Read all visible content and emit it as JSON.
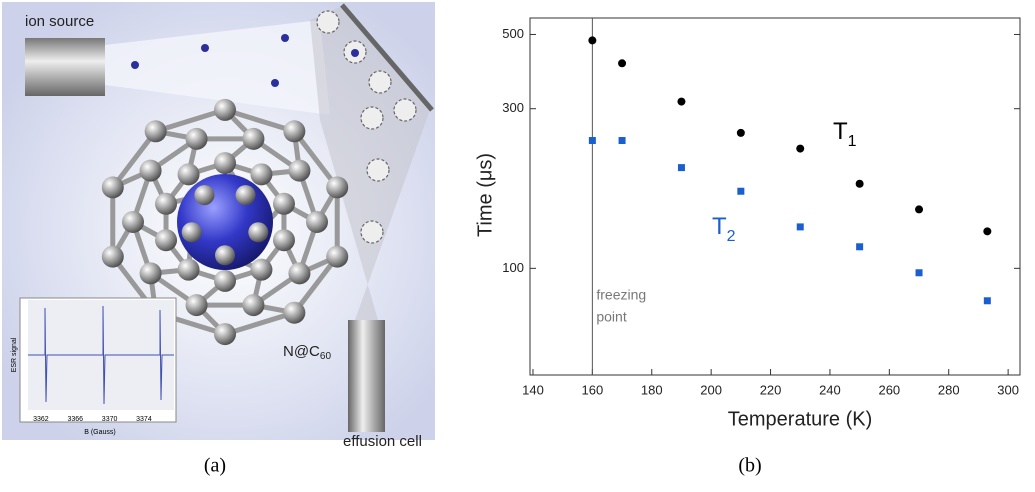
{
  "panel_a": {
    "caption": "(a)",
    "labels": {
      "ion_source": "ion source",
      "molecule": "N@C",
      "molecule_sub": "60",
      "effusion_cell": "effusion cell"
    },
    "inset": {
      "ylabel": "ESR signal",
      "xlabel": "B (Gauss)",
      "xlim": [
        3360.5,
        3377.5
      ],
      "xticks": [
        3362,
        3366,
        3370,
        3374
      ]
    }
  },
  "chart_data": {
    "type": "scatter",
    "caption": "(b)",
    "xlabel": "Temperature (K)",
    "ylabel": "Time (μs)",
    "log_y": true,
    "xlim": [
      139,
      304
    ],
    "ylim": [
      48,
      560
    ],
    "xticks": [
      140,
      160,
      180,
      200,
      220,
      240,
      260,
      280,
      300
    ],
    "yticks": [
      100,
      300,
      500
    ],
    "series": [
      {
        "name": "T",
        "name_sub": "1",
        "color": "#000000",
        "marker": "circle",
        "x": [
          160,
          170,
          190,
          210,
          230,
          250,
          270,
          293
        ],
        "values": [
          480,
          410,
          315,
          254,
          228,
          179,
          150,
          129
        ]
      },
      {
        "name": "T",
        "name_sub": "2",
        "color": "#1a5fd0",
        "marker": "square",
        "x": [
          160,
          170,
          190,
          210,
          230,
          250,
          270,
          293
        ],
        "values": [
          241,
          241,
          200,
          170,
          133,
          116,
          97,
          80
        ]
      }
    ],
    "freezing": {
      "x": 160,
      "label": [
        "freezing",
        "point"
      ]
    }
  }
}
